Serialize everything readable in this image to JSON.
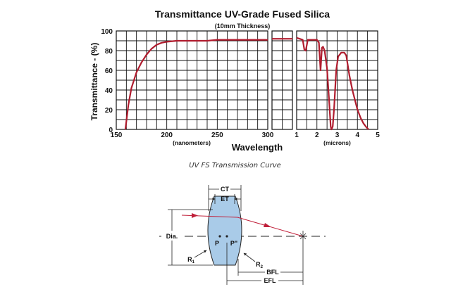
{
  "chart_data": {
    "type": "line",
    "title": "Transmittance UV-Grade Fused Silica",
    "subtitle": "(10mm Thickness)",
    "ylabel": "Transmittance - (%)",
    "xlabel": "Wavelength",
    "ylim": [
      0,
      100
    ],
    "yticks": [
      "0",
      "20",
      "40",
      "60",
      "80",
      "100"
    ],
    "grid": true,
    "series_color": "#b01c2e",
    "panels": [
      {
        "name": "uv",
        "unit_label": "(nanometers)",
        "xlim": [
          150,
          300
        ],
        "xticks": [
          "150",
          "200",
          "250",
          "300"
        ],
        "x": [
          159,
          160,
          162,
          165,
          170,
          175,
          180,
          185,
          190,
          195,
          200,
          210,
          220,
          240,
          250,
          270,
          300
        ],
        "y": [
          0,
          8,
          25,
          42,
          58,
          68,
          76,
          82,
          86,
          88,
          89,
          90,
          90,
          90,
          91,
          91,
          91
        ]
      },
      {
        "name": "visible",
        "unit_label": "",
        "xlim": [
          0,
          1
        ],
        "xticks": [],
        "x": [
          0,
          1
        ],
        "y": [
          92,
          92
        ]
      },
      {
        "name": "ir",
        "unit_label": "(microns)",
        "xlim": [
          1,
          5
        ],
        "xticks": [
          "1",
          "2",
          "3",
          "4",
          "5"
        ],
        "x": [
          1.0,
          1.15,
          1.3,
          1.38,
          1.45,
          1.55,
          1.7,
          2.0,
          2.1,
          2.18,
          2.25,
          2.3,
          2.38,
          2.5,
          2.6,
          2.68,
          2.72,
          2.78,
          2.85,
          2.95,
          3.05,
          3.2,
          3.35,
          3.45,
          3.6,
          3.75,
          3.9,
          4.0,
          4.15,
          4.3,
          4.45,
          4.55
        ],
        "y": [
          93,
          92,
          91,
          81,
          80,
          91,
          91,
          91,
          88,
          60,
          83,
          84,
          80,
          62,
          30,
          3,
          0,
          3,
          22,
          60,
          74,
          78,
          78,
          75,
          55,
          40,
          28,
          20,
          12,
          6,
          2,
          0
        ]
      }
    ]
  },
  "caption": "UV FS Transmission Curve",
  "diagram": {
    "labels": {
      "ct": "CT",
      "et": "ET",
      "dia": "Dia.",
      "p": "P",
      "p_prime": "P\"",
      "r1": "R1",
      "r2": "R2",
      "bfl": "BFL",
      "efl": "EFL"
    },
    "lens_fill": "#a9cbe8",
    "ray_color": "#c0203a"
  }
}
